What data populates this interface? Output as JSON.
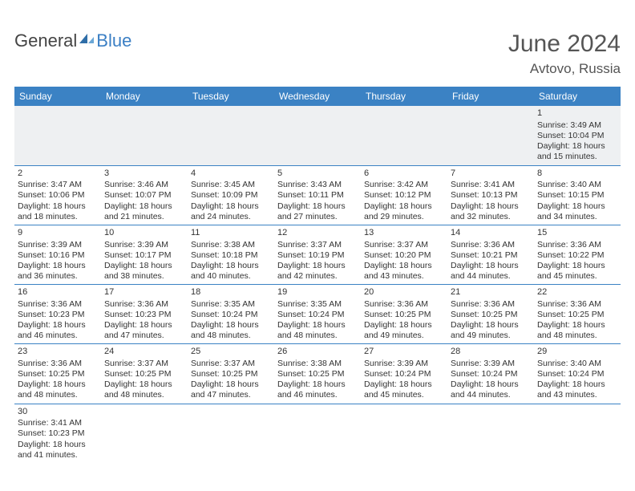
{
  "brand": {
    "part1": "General",
    "part2": "Blue"
  },
  "header": {
    "title": "June 2024",
    "location": "Avtovo, Russia"
  },
  "colors": {
    "header_bg": "#3b82c4",
    "header_fg": "#ffffff",
    "cell_border": "#3b82c4",
    "empty_bg": "#eef0f2",
    "text": "#333333",
    "title": "#555555",
    "logo_gray": "#444444",
    "logo_blue": "#3b7fc4"
  },
  "columns": [
    "Sunday",
    "Monday",
    "Tuesday",
    "Wednesday",
    "Thursday",
    "Friday",
    "Saturday"
  ],
  "weeks": [
    [
      null,
      null,
      null,
      null,
      null,
      null,
      {
        "n": "1",
        "sr": "3:49 AM",
        "ss": "10:04 PM",
        "dl": "18 hours and 15 minutes."
      }
    ],
    [
      {
        "n": "2",
        "sr": "3:47 AM",
        "ss": "10:06 PM",
        "dl": "18 hours and 18 minutes."
      },
      {
        "n": "3",
        "sr": "3:46 AM",
        "ss": "10:07 PM",
        "dl": "18 hours and 21 minutes."
      },
      {
        "n": "4",
        "sr": "3:45 AM",
        "ss": "10:09 PM",
        "dl": "18 hours and 24 minutes."
      },
      {
        "n": "5",
        "sr": "3:43 AM",
        "ss": "10:11 PM",
        "dl": "18 hours and 27 minutes."
      },
      {
        "n": "6",
        "sr": "3:42 AM",
        "ss": "10:12 PM",
        "dl": "18 hours and 29 minutes."
      },
      {
        "n": "7",
        "sr": "3:41 AM",
        "ss": "10:13 PM",
        "dl": "18 hours and 32 minutes."
      },
      {
        "n": "8",
        "sr": "3:40 AM",
        "ss": "10:15 PM",
        "dl": "18 hours and 34 minutes."
      }
    ],
    [
      {
        "n": "9",
        "sr": "3:39 AM",
        "ss": "10:16 PM",
        "dl": "18 hours and 36 minutes."
      },
      {
        "n": "10",
        "sr": "3:39 AM",
        "ss": "10:17 PM",
        "dl": "18 hours and 38 minutes."
      },
      {
        "n": "11",
        "sr": "3:38 AM",
        "ss": "10:18 PM",
        "dl": "18 hours and 40 minutes."
      },
      {
        "n": "12",
        "sr": "3:37 AM",
        "ss": "10:19 PM",
        "dl": "18 hours and 42 minutes."
      },
      {
        "n": "13",
        "sr": "3:37 AM",
        "ss": "10:20 PM",
        "dl": "18 hours and 43 minutes."
      },
      {
        "n": "14",
        "sr": "3:36 AM",
        "ss": "10:21 PM",
        "dl": "18 hours and 44 minutes."
      },
      {
        "n": "15",
        "sr": "3:36 AM",
        "ss": "10:22 PM",
        "dl": "18 hours and 45 minutes."
      }
    ],
    [
      {
        "n": "16",
        "sr": "3:36 AM",
        "ss": "10:23 PM",
        "dl": "18 hours and 46 minutes."
      },
      {
        "n": "17",
        "sr": "3:36 AM",
        "ss": "10:23 PM",
        "dl": "18 hours and 47 minutes."
      },
      {
        "n": "18",
        "sr": "3:35 AM",
        "ss": "10:24 PM",
        "dl": "18 hours and 48 minutes."
      },
      {
        "n": "19",
        "sr": "3:35 AM",
        "ss": "10:24 PM",
        "dl": "18 hours and 48 minutes."
      },
      {
        "n": "20",
        "sr": "3:36 AM",
        "ss": "10:25 PM",
        "dl": "18 hours and 49 minutes."
      },
      {
        "n": "21",
        "sr": "3:36 AM",
        "ss": "10:25 PM",
        "dl": "18 hours and 49 minutes."
      },
      {
        "n": "22",
        "sr": "3:36 AM",
        "ss": "10:25 PM",
        "dl": "18 hours and 48 minutes."
      }
    ],
    [
      {
        "n": "23",
        "sr": "3:36 AM",
        "ss": "10:25 PM",
        "dl": "18 hours and 48 minutes."
      },
      {
        "n": "24",
        "sr": "3:37 AM",
        "ss": "10:25 PM",
        "dl": "18 hours and 48 minutes."
      },
      {
        "n": "25",
        "sr": "3:37 AM",
        "ss": "10:25 PM",
        "dl": "18 hours and 47 minutes."
      },
      {
        "n": "26",
        "sr": "3:38 AM",
        "ss": "10:25 PM",
        "dl": "18 hours and 46 minutes."
      },
      {
        "n": "27",
        "sr": "3:39 AM",
        "ss": "10:24 PM",
        "dl": "18 hours and 45 minutes."
      },
      {
        "n": "28",
        "sr": "3:39 AM",
        "ss": "10:24 PM",
        "dl": "18 hours and 44 minutes."
      },
      {
        "n": "29",
        "sr": "3:40 AM",
        "ss": "10:24 PM",
        "dl": "18 hours and 43 minutes."
      }
    ],
    [
      {
        "n": "30",
        "sr": "3:41 AM",
        "ss": "10:23 PM",
        "dl": "18 hours and 41 minutes."
      },
      null,
      null,
      null,
      null,
      null,
      null
    ]
  ],
  "labels": {
    "sunrise": "Sunrise:",
    "sunset": "Sunset:",
    "daylight": "Daylight:"
  }
}
